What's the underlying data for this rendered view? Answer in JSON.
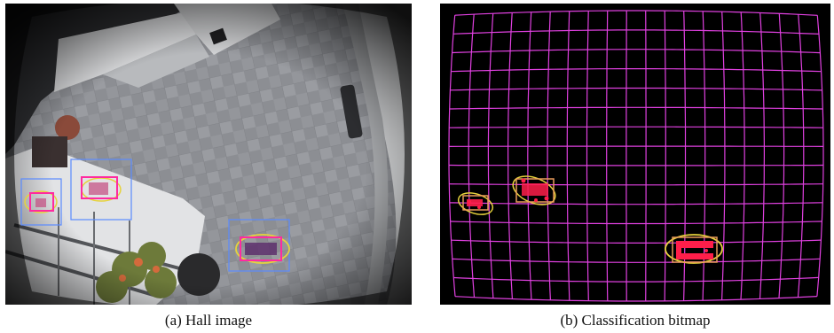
{
  "figure": {
    "panels": [
      {
        "id": "a",
        "caption": "(a)  Hall image"
      },
      {
        "id": "b",
        "caption": "(b)  Classification bitmap"
      }
    ]
  },
  "colors": {
    "grid": "#e040e0",
    "ellipse": "#e6d23c",
    "box": "#e89a5a",
    "blob": "#ff1e4a",
    "hall_box": "#5a8aff"
  }
}
